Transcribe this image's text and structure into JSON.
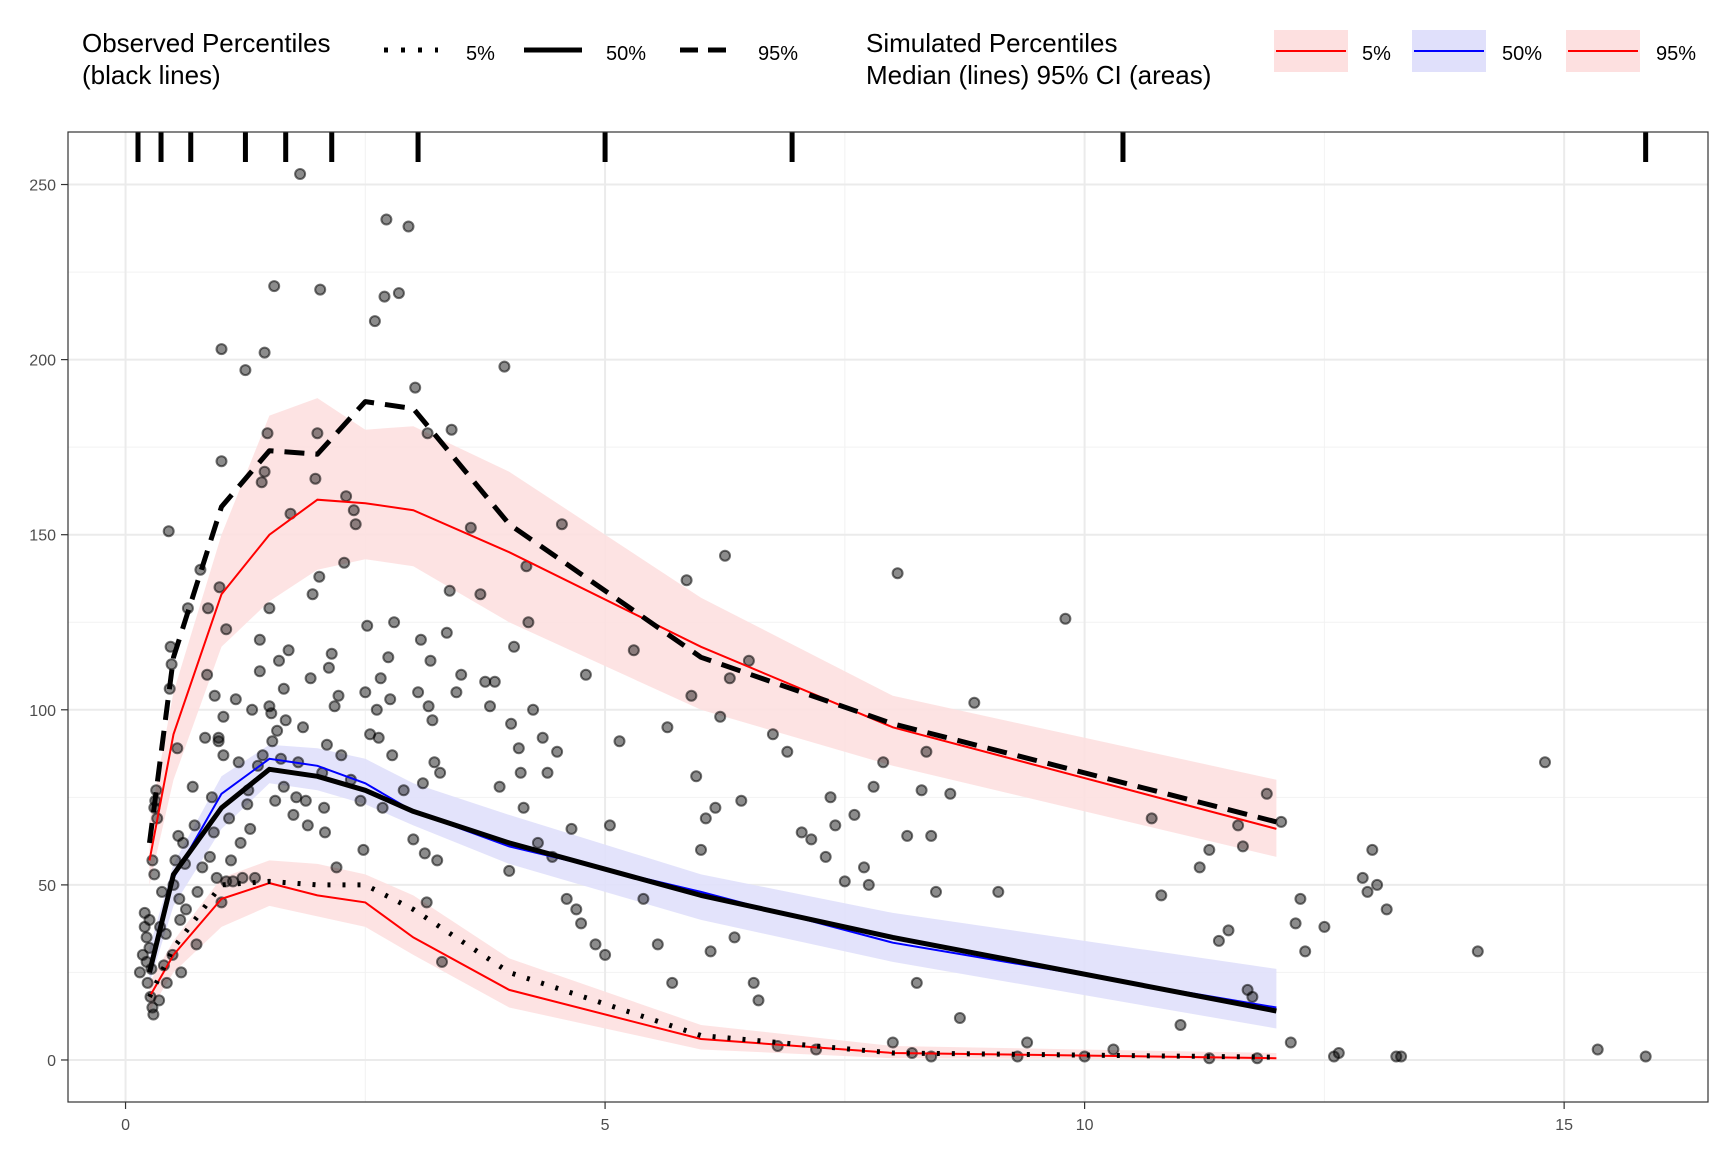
{
  "chart_data": {
    "type": "scatter",
    "title": "",
    "xlabel": "",
    "ylabel": "",
    "xlim": [
      -0.6,
      16.5
    ],
    "ylim": [
      -12,
      265
    ],
    "x_ticks": [
      0,
      5,
      10,
      15
    ],
    "x_tick_labels": [
      "0",
      "5",
      "10",
      "15"
    ],
    "y_ticks": [
      0,
      50,
      100,
      150,
      200,
      250
    ],
    "y_tick_labels": [
      "0",
      "50",
      "100",
      "150",
      "200",
      "250"
    ],
    "grid": true,
    "legend_position": "top",
    "colors": {
      "sim_extreme": "#ff0000",
      "sim_median": "#0000ff",
      "extreme_band": "#fde0e0",
      "median_band": "#e0e0fb",
      "observed": "#000000"
    },
    "legend": {
      "observed_title": [
        "Observed Percentiles",
        "(black lines)"
      ],
      "observed_items": [
        {
          "label": "5%",
          "style": "dotted"
        },
        {
          "label": "50%",
          "style": "solid"
        },
        {
          "label": "95%",
          "style": "dashed"
        }
      ],
      "simulated_title": [
        "Simulated Percentiles",
        "Median (lines) 95% CI (areas)"
      ],
      "simulated_items": [
        {
          "label": "5%",
          "color": "#ff0000"
        },
        {
          "label": "50%",
          "color": "#0000ff"
        },
        {
          "label": "95%",
          "color": "#ff0000"
        }
      ]
    },
    "bin_boundaries": [
      0.13,
      0.37,
      0.68,
      1.25,
      1.67,
      2.15,
      3.05,
      5.0,
      6.95,
      10.4,
      15.85
    ],
    "bin_midpoints": [
      0.25,
      0.5,
      1.0,
      1.5,
      2.0,
      2.5,
      3.0,
      4.0,
      6.0,
      8.0,
      12.0
    ],
    "sim_bands": [
      {
        "name": "sim-5%",
        "x": [
          0.25,
          0.5,
          1.0,
          1.5,
          2.0,
          2.5,
          3.0,
          4.0,
          6.0,
          8.0,
          12.0
        ],
        "lower": [
          14,
          25,
          38,
          44,
          41,
          38,
          30,
          15,
          3,
          0.5,
          0
        ],
        "upper": [
          22,
          34,
          52,
          57,
          56,
          53,
          47,
          29,
          10,
          4,
          2
        ],
        "median": [
          18,
          30,
          46,
          50.5,
          47,
          45,
          35,
          20,
          6,
          2,
          0.5
        ]
      },
      {
        "name": "sim-50%",
        "x": [
          0.25,
          0.5,
          1.0,
          1.5,
          2.0,
          2.5,
          3.0,
          4.0,
          6.0,
          8.0,
          12.0
        ],
        "lower": [
          22,
          44,
          66,
          79,
          77,
          73,
          67,
          56,
          40,
          28,
          9
        ],
        "upper": [
          32,
          56,
          81,
          90,
          89,
          86,
          79,
          70,
          53,
          42,
          26
        ],
        "median": [
          26,
          52,
          76,
          86,
          84,
          79,
          71,
          61,
          48,
          33.5,
          15
        ]
      },
      {
        "name": "sim-95%",
        "x": [
          0.25,
          0.5,
          1.0,
          1.5,
          2.0,
          2.5,
          3.0,
          4.0,
          6.0,
          8.0,
          12.0
        ],
        "lower": [
          50,
          80,
          118,
          131,
          140,
          143,
          141,
          125,
          100,
          84,
          58
        ],
        "upper": [
          68,
          105,
          150,
          184,
          189,
          180,
          181,
          168,
          132,
          104,
          80
        ],
        "median": [
          57,
          93,
          133,
          150,
          160,
          159,
          157,
          145,
          118,
          95,
          66
        ]
      }
    ],
    "observed_lines": [
      {
        "name": "obs-5%",
        "style": "dotted",
        "x": [
          0.25,
          0.5,
          1.0,
          1.5,
          2.0,
          2.5,
          3.0,
          4.0,
          6.0,
          8.0,
          12.0
        ],
        "y": [
          18,
          32,
          50,
          51,
          50,
          50,
          43,
          25,
          7,
          2,
          0.8
        ]
      },
      {
        "name": "obs-50%",
        "style": "solid",
        "x": [
          0.25,
          0.5,
          1.0,
          1.5,
          2.0,
          2.5,
          3.0,
          4.0,
          6.0,
          8.0,
          12.0
        ],
        "y": [
          25,
          53,
          72,
          83,
          81,
          77,
          71,
          62,
          47,
          35,
          14
        ]
      },
      {
        "name": "obs-95%",
        "style": "dashed",
        "x": [
          0.25,
          0.5,
          1.0,
          1.5,
          2.0,
          2.5,
          3.0,
          4.0,
          6.0,
          8.0,
          12.0
        ],
        "y": [
          62,
          115,
          158,
          174,
          173,
          188,
          186,
          153,
          115,
          96,
          68
        ]
      }
    ],
    "points": [
      [
        0.15,
        25
      ],
      [
        0.18,
        30
      ],
      [
        0.2,
        38
      ],
      [
        0.2,
        42
      ],
      [
        0.22,
        35
      ],
      [
        0.22,
        28
      ],
      [
        0.23,
        22
      ],
      [
        0.25,
        32
      ],
      [
        0.25,
        40
      ],
      [
        0.26,
        18
      ],
      [
        0.27,
        26
      ],
      [
        0.28,
        15
      ],
      [
        0.28,
        57
      ],
      [
        0.29,
        13
      ],
      [
        0.3,
        53
      ],
      [
        0.3,
        72
      ],
      [
        0.31,
        74
      ],
      [
        0.32,
        77
      ],
      [
        0.33,
        69
      ],
      [
        0.35,
        17
      ],
      [
        0.36,
        38
      ],
      [
        0.38,
        48
      ],
      [
        0.4,
        27
      ],
      [
        0.42,
        36
      ],
      [
        0.43,
        22
      ],
      [
        0.45,
        151
      ],
      [
        0.46,
        106
      ],
      [
        0.47,
        118
      ],
      [
        0.48,
        113
      ],
      [
        0.49,
        30
      ],
      [
        0.5,
        50
      ],
      [
        0.52,
        57
      ],
      [
        0.54,
        89
      ],
      [
        0.55,
        64
      ],
      [
        0.56,
        46
      ],
      [
        0.57,
        40
      ],
      [
        0.58,
        25
      ],
      [
        0.6,
        62
      ],
      [
        0.62,
        56
      ],
      [
        0.63,
        43
      ],
      [
        0.65,
        129
      ],
      [
        0.7,
        78
      ],
      [
        0.72,
        67
      ],
      [
        0.74,
        33
      ],
      [
        0.75,
        48
      ],
      [
        0.78,
        140
      ],
      [
        0.8,
        55
      ],
      [
        0.83,
        92
      ],
      [
        0.85,
        110
      ],
      [
        0.86,
        129
      ],
      [
        0.88,
        58
      ],
      [
        0.9,
        75
      ],
      [
        0.92,
        65
      ],
      [
        0.93,
        104
      ],
      [
        0.95,
        52
      ],
      [
        0.97,
        91
      ],
      [
        0.97,
        92
      ],
      [
        0.98,
        135
      ],
      [
        1.0,
        171
      ],
      [
        1.0,
        45
      ],
      [
        1.0,
        203
      ],
      [
        1.02,
        98
      ],
      [
        1.02,
        87
      ],
      [
        1.05,
        123
      ],
      [
        1.05,
        51
      ],
      [
        1.08,
        69
      ],
      [
        1.1,
        57
      ],
      [
        1.12,
        51
      ],
      [
        1.15,
        103
      ],
      [
        1.18,
        85
      ],
      [
        1.2,
        62
      ],
      [
        1.22,
        52
      ],
      [
        1.25,
        197
      ],
      [
        1.27,
        73
      ],
      [
        1.28,
        77
      ],
      [
        1.3,
        66
      ],
      [
        1.32,
        100
      ],
      [
        1.35,
        52
      ],
      [
        1.38,
        84
      ],
      [
        1.4,
        111
      ],
      [
        1.4,
        120
      ],
      [
        1.42,
        165
      ],
      [
        1.43,
        87
      ],
      [
        1.45,
        168
      ],
      [
        1.45,
        202
      ],
      [
        1.48,
        179
      ],
      [
        1.5,
        129
      ],
      [
        1.5,
        101
      ],
      [
        1.52,
        99
      ],
      [
        1.53,
        91
      ],
      [
        1.55,
        221
      ],
      [
        1.56,
        74
      ],
      [
        1.58,
        94
      ],
      [
        1.6,
        114
      ],
      [
        1.62,
        86
      ],
      [
        1.65,
        106
      ],
      [
        1.65,
        78
      ],
      [
        1.67,
        97
      ],
      [
        1.7,
        117
      ],
      [
        1.72,
        156
      ],
      [
        1.75,
        70
      ],
      [
        1.78,
        75
      ],
      [
        1.8,
        85
      ],
      [
        1.82,
        253
      ],
      [
        1.85,
        95
      ],
      [
        1.88,
        74
      ],
      [
        1.9,
        67
      ],
      [
        1.93,
        109
      ],
      [
        1.95,
        133
      ],
      [
        1.98,
        166
      ],
      [
        2.0,
        179
      ],
      [
        2.02,
        138
      ],
      [
        2.03,
        220
      ],
      [
        2.05,
        82
      ],
      [
        2.07,
        72
      ],
      [
        2.08,
        65
      ],
      [
        2.1,
        90
      ],
      [
        2.12,
        112
      ],
      [
        2.15,
        116
      ],
      [
        2.18,
        101
      ],
      [
        2.2,
        55
      ],
      [
        2.22,
        104
      ],
      [
        2.25,
        87
      ],
      [
        2.28,
        142
      ],
      [
        2.3,
        161
      ],
      [
        2.35,
        80
      ],
      [
        2.38,
        157
      ],
      [
        2.4,
        153
      ],
      [
        2.45,
        74
      ],
      [
        2.48,
        60
      ],
      [
        2.5,
        105
      ],
      [
        2.52,
        124
      ],
      [
        2.55,
        93
      ],
      [
        2.6,
        211
      ],
      [
        2.62,
        100
      ],
      [
        2.64,
        92
      ],
      [
        2.66,
        109
      ],
      [
        2.68,
        72
      ],
      [
        2.7,
        218
      ],
      [
        2.72,
        240
      ],
      [
        2.74,
        115
      ],
      [
        2.76,
        103
      ],
      [
        2.78,
        87
      ],
      [
        2.8,
        125
      ],
      [
        2.85,
        219
      ],
      [
        2.9,
        77
      ],
      [
        2.95,
        238
      ],
      [
        3.0,
        63
      ],
      [
        3.02,
        192
      ],
      [
        3.05,
        105
      ],
      [
        3.08,
        120
      ],
      [
        3.1,
        79
      ],
      [
        3.12,
        59
      ],
      [
        3.14,
        45
      ],
      [
        3.15,
        179
      ],
      [
        3.16,
        101
      ],
      [
        3.18,
        114
      ],
      [
        3.2,
        97
      ],
      [
        3.22,
        85
      ],
      [
        3.25,
        57
      ],
      [
        3.28,
        82
      ],
      [
        3.3,
        28
      ],
      [
        3.35,
        122
      ],
      [
        3.38,
        134
      ],
      [
        3.4,
        180
      ],
      [
        3.45,
        105
      ],
      [
        3.5,
        110
      ],
      [
        3.6,
        152
      ],
      [
        3.7,
        133
      ],
      [
        3.75,
        108
      ],
      [
        3.8,
        101
      ],
      [
        3.85,
        108
      ],
      [
        3.9,
        78
      ],
      [
        3.95,
        198
      ],
      [
        4.0,
        54
      ],
      [
        4.02,
        96
      ],
      [
        4.05,
        118
      ],
      [
        4.1,
        89
      ],
      [
        4.12,
        82
      ],
      [
        4.15,
        72
      ],
      [
        4.18,
        141
      ],
      [
        4.2,
        125
      ],
      [
        4.25,
        100
      ],
      [
        4.3,
        62
      ],
      [
        4.35,
        92
      ],
      [
        4.4,
        82
      ],
      [
        4.45,
        58
      ],
      [
        4.5,
        88
      ],
      [
        4.55,
        153
      ],
      [
        4.6,
        46
      ],
      [
        4.65,
        66
      ],
      [
        4.7,
        43
      ],
      [
        4.75,
        39
      ],
      [
        4.8,
        110
      ],
      [
        4.9,
        33
      ],
      [
        5.0,
        30
      ],
      [
        5.05,
        67
      ],
      [
        5.15,
        91
      ],
      [
        5.3,
        117
      ],
      [
        5.4,
        46
      ],
      [
        5.55,
        33
      ],
      [
        5.65,
        95
      ],
      [
        5.7,
        22
      ],
      [
        5.85,
        137
      ],
      [
        5.9,
        104
      ],
      [
        5.95,
        81
      ],
      [
        6.0,
        60
      ],
      [
        6.05,
        69
      ],
      [
        6.1,
        31
      ],
      [
        6.15,
        72
      ],
      [
        6.2,
        98
      ],
      [
        6.25,
        144
      ],
      [
        6.3,
        109
      ],
      [
        6.35,
        35
      ],
      [
        6.42,
        74
      ],
      [
        6.5,
        114
      ],
      [
        6.55,
        22
      ],
      [
        6.6,
        17
      ],
      [
        6.75,
        93
      ],
      [
        6.9,
        88
      ],
      [
        7.05,
        65
      ],
      [
        7.15,
        63
      ],
      [
        7.3,
        58
      ],
      [
        7.35,
        75
      ],
      [
        7.4,
        67
      ],
      [
        7.5,
        51
      ],
      [
        7.6,
        70
      ],
      [
        7.7,
        55
      ],
      [
        7.75,
        50
      ],
      [
        7.8,
        78
      ],
      [
        7.9,
        85
      ],
      [
        8.05,
        139
      ],
      [
        8.15,
        64
      ],
      [
        8.25,
        22
      ],
      [
        8.3,
        77
      ],
      [
        8.35,
        88
      ],
      [
        8.4,
        64
      ],
      [
        8.45,
        48
      ],
      [
        8.6,
        76
      ],
      [
        8.7,
        12
      ],
      [
        8.85,
        102
      ],
      [
        9.1,
        48
      ],
      [
        9.4,
        5
      ],
      [
        9.8,
        126
      ],
      [
        10.3,
        3
      ],
      [
        10.7,
        69
      ],
      [
        10.8,
        47
      ],
      [
        11.0,
        10
      ],
      [
        11.2,
        55
      ],
      [
        11.3,
        60
      ],
      [
        11.4,
        34
      ],
      [
        11.5,
        37
      ],
      [
        11.6,
        67
      ],
      [
        11.65,
        61
      ],
      [
        11.7,
        20
      ],
      [
        11.75,
        18
      ],
      [
        11.9,
        76
      ],
      [
        12.05,
        68
      ],
      [
        12.15,
        5
      ],
      [
        12.2,
        39
      ],
      [
        12.25,
        46
      ],
      [
        12.3,
        31
      ],
      [
        12.5,
        38
      ],
      [
        12.65,
        2
      ],
      [
        12.9,
        52
      ],
      [
        12.95,
        48
      ],
      [
        13.0,
        60
      ],
      [
        13.05,
        50
      ],
      [
        13.15,
        43
      ],
      [
        13.3,
        1
      ],
      [
        14.1,
        31
      ],
      [
        14.8,
        85
      ],
      [
        15.35,
        3
      ],
      [
        15.85,
        1
      ],
      [
        8.0,
        5
      ],
      [
        8.2,
        2
      ],
      [
        8.4,
        1
      ],
      [
        7.2,
        3
      ],
      [
        6.8,
        4
      ],
      [
        9.3,
        1
      ],
      [
        10.0,
        1
      ],
      [
        11.3,
        0.5
      ],
      [
        11.8,
        0.5
      ],
      [
        12.6,
        1
      ],
      [
        13.25,
        1
      ]
    ]
  }
}
